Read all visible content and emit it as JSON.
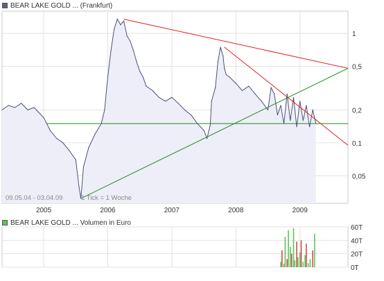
{
  "legend": {
    "price": "BEAR LAKE GOLD ... (Frankfurt)",
    "volume": "BEAR LAKE GOLD ... Volumen in Euro"
  },
  "info": {
    "date_range": "09.05.04 - 03.04.09",
    "tick": "1 Tick = 1 Woche"
  },
  "colors": {
    "price_line": "#4a4f78",
    "price_fill": "#eeeef8",
    "trend_red": "#e0201c",
    "trend_green": "#1f8a1f",
    "volume_bar_green": "#5cc45c",
    "volume_bar_red": "#d24a4a",
    "volume_legend_swatch": "#5cc45c",
    "price_legend_swatch": "#5a6280"
  },
  "chart_data": [
    {
      "type": "line",
      "title": "BEAR LAKE GOLD ... (Frankfurt)",
      "y_scale": "log",
      "yticks": [
        "1",
        "0,5",
        "0,2",
        "0,1",
        "0,05"
      ],
      "ytick_values": [
        1,
        0.5,
        0.2,
        0.1,
        0.05
      ],
      "ylim": [
        0.028,
        1.6
      ],
      "xticks": [
        "2005",
        "2006",
        "2007",
        "2008",
        "2009"
      ],
      "xtick_values": [
        2005.0,
        2006.0,
        2007.0,
        2008.0,
        2009.0
      ],
      "xlim": [
        2004.35,
        2009.75
      ],
      "grid": true,
      "series": [
        {
          "name": "BEAR LAKE GOLD ... (Frankfurt)",
          "x": [
            2004.35,
            2004.45,
            2004.55,
            2004.65,
            2004.75,
            2004.85,
            2004.92,
            2005.0,
            2005.1,
            2005.2,
            2005.3,
            2005.4,
            2005.5,
            2005.55,
            2005.58,
            2005.62,
            2005.7,
            2005.8,
            2005.9,
            2005.95,
            2006.0,
            2006.05,
            2006.1,
            2006.15,
            2006.2,
            2006.25,
            2006.3,
            2006.35,
            2006.4,
            2006.45,
            2006.5,
            2006.55,
            2006.6,
            2006.7,
            2006.8,
            2006.9,
            2007.0,
            2007.1,
            2007.2,
            2007.3,
            2007.4,
            2007.5,
            2007.55,
            2007.6,
            2007.62,
            2007.68,
            2007.72,
            2007.76,
            2007.8,
            2007.82,
            2007.85,
            2007.9,
            2008.0,
            2008.1,
            2008.2,
            2008.3,
            2008.4,
            2008.5,
            2008.55,
            2008.6,
            2008.65,
            2008.7,
            2008.75,
            2008.8,
            2008.85,
            2008.9,
            2008.95,
            2009.0,
            2009.05,
            2009.1,
            2009.15,
            2009.2,
            2009.25
          ],
          "values": [
            0.2,
            0.22,
            0.21,
            0.23,
            0.2,
            0.21,
            0.19,
            0.17,
            0.13,
            0.11,
            0.1,
            0.085,
            0.07,
            0.04,
            0.031,
            0.06,
            0.09,
            0.12,
            0.15,
            0.2,
            0.4,
            0.7,
            1.1,
            1.35,
            1.2,
            1.3,
            0.95,
            0.85,
            0.7,
            0.55,
            0.45,
            0.4,
            0.33,
            0.3,
            0.26,
            0.24,
            0.26,
            0.23,
            0.2,
            0.18,
            0.15,
            0.13,
            0.11,
            0.145,
            0.24,
            0.32,
            0.55,
            0.75,
            0.62,
            0.48,
            0.42,
            0.4,
            0.35,
            0.3,
            0.33,
            0.28,
            0.24,
            0.2,
            0.32,
            0.28,
            0.18,
            0.22,
            0.15,
            0.28,
            0.16,
            0.26,
            0.14,
            0.24,
            0.16,
            0.22,
            0.14,
            0.2,
            0.15
          ]
        }
      ],
      "trendlines": [
        {
          "color": "red",
          "x": [
            2006.25,
            2009.75
          ],
          "values": [
            1.35,
            0.48
          ]
        },
        {
          "color": "red",
          "x": [
            2007.82,
            2009.75
          ],
          "values": [
            0.75,
            0.095
          ]
        },
        {
          "color": "green",
          "x": [
            2005.58,
            2009.75
          ],
          "values": [
            0.031,
            0.48
          ]
        },
        {
          "color": "green",
          "x": [
            2005.05,
            2009.75
          ],
          "values": [
            0.15,
            0.15
          ]
        }
      ]
    },
    {
      "type": "bar",
      "title": "BEAR LAKE GOLD ... Volumen in Euro",
      "yticks": [
        "60T",
        "40T",
        "20T",
        "0T"
      ],
      "ytick_values": [
        60000,
        40000,
        20000,
        0
      ],
      "ylim": [
        0,
        60000
      ],
      "xlim": [
        2004.35,
        2009.75
      ],
      "grid": true,
      "series": [
        {
          "name": "Volumen in Euro",
          "x": [
            2008.7,
            2008.72,
            2008.75,
            2008.77,
            2008.8,
            2008.82,
            2008.85,
            2008.87,
            2008.9,
            2008.92,
            2008.95,
            2008.97,
            2009.0,
            2009.02,
            2009.05,
            2009.08,
            2009.1,
            2009.13,
            2009.16,
            2009.2,
            2009.23
          ],
          "values": [
            8000,
            25000,
            5000,
            45000,
            12000,
            55000,
            30000,
            20000,
            58000,
            10000,
            38000,
            15000,
            22000,
            40000,
            8000,
            18000,
            35000,
            6000,
            12000,
            25000,
            50000
          ]
        }
      ]
    }
  ]
}
